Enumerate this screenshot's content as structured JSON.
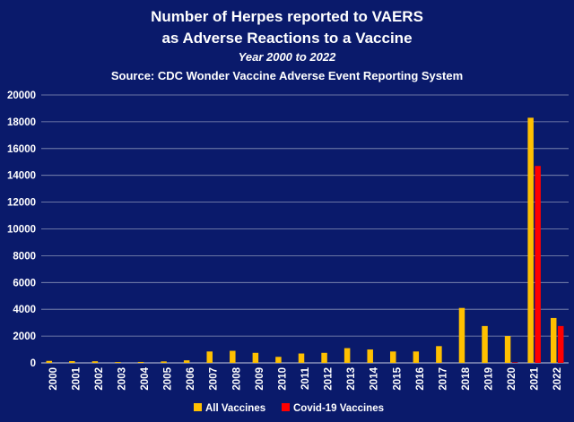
{
  "chart_data": {
    "type": "bar",
    "title_lines": [
      "Number of Herpes reported to VAERS",
      "as Adverse Reactions to a Vaccine"
    ],
    "subtitle": "Year 2000 to 2022",
    "source": "Source: CDC Wonder Vaccine Adverse Event Reporting System",
    "categories": [
      "2000",
      "2001",
      "2002",
      "2003",
      "2004",
      "2005",
      "2006",
      "2007",
      "2008",
      "2009",
      "2010",
      "2011",
      "2012",
      "2013",
      "2014",
      "2015",
      "2016",
      "2017",
      "2018",
      "2019",
      "2020",
      "2021",
      "2022"
    ],
    "series": [
      {
        "name": "All Vaccines",
        "color": "#ffc000",
        "values": [
          150,
          130,
          120,
          60,
          70,
          110,
          190,
          850,
          900,
          750,
          450,
          700,
          750,
          1100,
          1000,
          850,
          850,
          1250,
          4100,
          2750,
          2000,
          18300,
          3350
        ]
      },
      {
        "name": "Covid-19 Vaccines",
        "color": "#ff0000",
        "values": [
          0,
          0,
          0,
          0,
          0,
          0,
          0,
          0,
          0,
          0,
          0,
          0,
          0,
          0,
          0,
          0,
          0,
          0,
          0,
          0,
          40,
          14700,
          2750
        ]
      }
    ],
    "yticks": [
      "0",
      "2000",
      "4000",
      "6000",
      "8000",
      "10000",
      "12000",
      "14000",
      "16000",
      "18000",
      "20000"
    ],
    "ylim": [
      0,
      20000
    ],
    "grid": true,
    "legend_position": "bottom"
  }
}
